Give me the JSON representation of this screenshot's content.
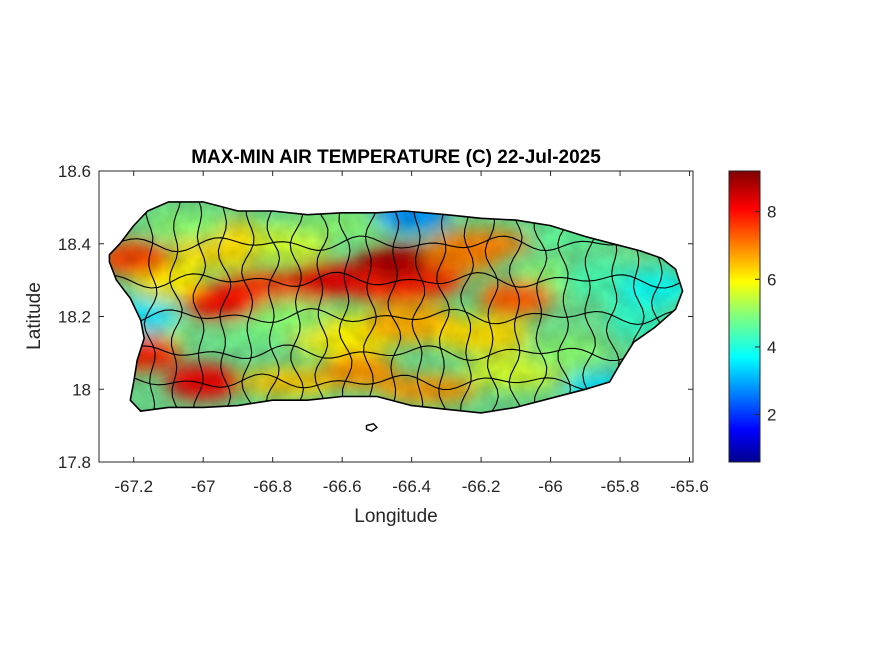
{
  "title": "MAX-MIN AIR TEMPERATURE (C) 22-Jul-2025",
  "xlabel": "Longitude",
  "ylabel": "Latitude",
  "x_ticks": [
    "-67.2",
    "-67",
    "-66.8",
    "-66.6",
    "-66.4",
    "-66.2",
    "-66",
    "-65.8",
    "-65.6"
  ],
  "y_ticks": [
    "18.6",
    "18.4",
    "18.2",
    "18",
    "17.8"
  ],
  "colorbar_ticks": [
    "8",
    "6",
    "4",
    "2"
  ],
  "colormap": "jet",
  "colors": {
    "low": "#00008f",
    "mid": "#ffff00",
    "high": "#800000"
  },
  "chart_data": {
    "type": "heatmap",
    "title": "MAX-MIN AIR TEMPERATURE (C) 22-Jul-2025",
    "xlabel": "Longitude",
    "ylabel": "Latitude",
    "xlim": [
      -67.3,
      -65.59
    ],
    "ylim": [
      17.8,
      18.6
    ],
    "color_range": [
      0.6,
      9.2
    ],
    "x_ticks": [
      -67.2,
      -67,
      -66.8,
      -66.6,
      -66.4,
      -66.2,
      -66,
      -65.8,
      -65.6
    ],
    "y_ticks": [
      18.6,
      18.4,
      18.2,
      18,
      17.8
    ],
    "colorbar_ticks": [
      8,
      6,
      4,
      2
    ],
    "regions": [
      {
        "name": "",
        "lon": -66.45,
        "lat": 18.35,
        "value": 8.8
      },
      {
        "name": "",
        "lon": -66.65,
        "lat": 18.3,
        "value": 8.3
      },
      {
        "name": "",
        "lon": -66.95,
        "lat": 18.24,
        "value": 8.0
      },
      {
        "name": "",
        "lon": -67.0,
        "lat": 18.02,
        "value": 8.2
      },
      {
        "name": "",
        "lon": -67.17,
        "lat": 18.1,
        "value": 7.8
      },
      {
        "name": "",
        "lon": -67.2,
        "lat": 18.36,
        "value": 7.5
      },
      {
        "name": "",
        "lon": -66.1,
        "lat": 18.25,
        "value": 7.3
      },
      {
        "name": "",
        "lon": -66.25,
        "lat": 18.37,
        "value": 7.0
      },
      {
        "name": "",
        "lon": -66.55,
        "lat": 18.05,
        "value": 6.8
      },
      {
        "name": "",
        "lon": -66.75,
        "lat": 18.2,
        "value": 5.0
      },
      {
        "name": "",
        "lon": -65.95,
        "lat": 18.1,
        "value": 5.0
      },
      {
        "name": "",
        "lon": -65.7,
        "lat": 18.28,
        "value": 3.8
      },
      {
        "name": "",
        "lon": -66.4,
        "lat": 18.48,
        "value": 2.8
      },
      {
        "name": "",
        "lon": -65.85,
        "lat": 18.0,
        "value": 3.5
      },
      {
        "name": "",
        "lon": -67.18,
        "lat": 18.2,
        "value": 3.5
      }
    ]
  }
}
